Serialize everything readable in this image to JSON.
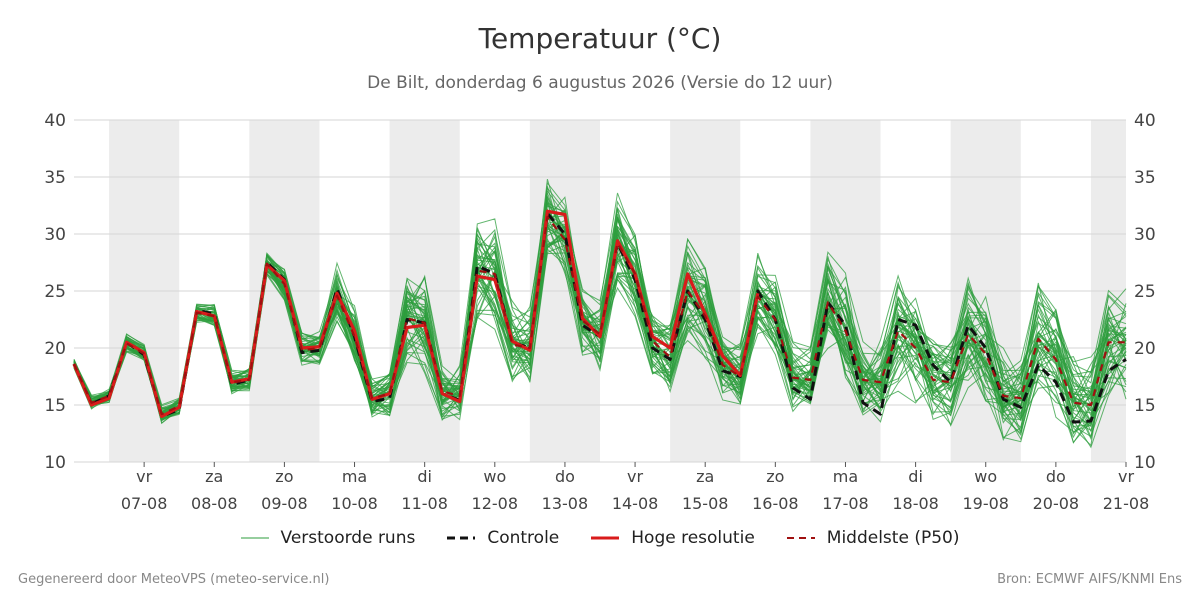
{
  "chart_data": {
    "type": "line",
    "title": "Temperatuur (°C)",
    "subtitle": "De Bilt, donderdag  6 augustus 2026 (Versie do 12 uur)",
    "ylim": [
      10,
      40
    ],
    "y_ticks": [
      "10",
      "15",
      "20",
      "25",
      "30",
      "35",
      "40"
    ],
    "x_range_days": [
      "2026-08-06 12:00",
      "2026-08-21 12:00"
    ],
    "grid": true,
    "weekend_shading": true,
    "legend_placement": "bottom",
    "day_ticks": [
      {
        "dow": "vr",
        "date": "07-08"
      },
      {
        "dow": "za",
        "date": "08-08"
      },
      {
        "dow": "zo",
        "date": "09-08"
      },
      {
        "dow": "ma",
        "date": "10-08"
      },
      {
        "dow": "di",
        "date": "11-08"
      },
      {
        "dow": "wo",
        "date": "12-08"
      },
      {
        "dow": "do",
        "date": "13-08"
      },
      {
        "dow": "vr",
        "date": "14-08"
      },
      {
        "dow": "za",
        "date": "15-08"
      },
      {
        "dow": "zo",
        "date": "16-08"
      },
      {
        "dow": "ma",
        "date": "17-08"
      },
      {
        "dow": "di",
        "date": "18-08"
      },
      {
        "dow": "wo",
        "date": "19-08"
      },
      {
        "dow": "do",
        "date": "20-08"
      },
      {
        "dow": "vr",
        "date": "21-08"
      }
    ],
    "x_hours": [
      0,
      6,
      12,
      18,
      24,
      30,
      36,
      42,
      48,
      54,
      60,
      66,
      72,
      78,
      84,
      90,
      96,
      102,
      108,
      114,
      120,
      126,
      132,
      138,
      144,
      150,
      156,
      162,
      168,
      174,
      180,
      186,
      192,
      198,
      204,
      210,
      216,
      222,
      228,
      234,
      240,
      246,
      252,
      258,
      264,
      270,
      276,
      282,
      288,
      294,
      300,
      306,
      312,
      318,
      324,
      330,
      336,
      342,
      348,
      354,
      360
    ],
    "series": [
      {
        "name": "Controle",
        "color": "#111111",
        "style": "dashed",
        "values": [
          18.6,
          15.1,
          15.8,
          20.5,
          19.4,
          14.0,
          14.6,
          23.3,
          23.0,
          16.8,
          17.2,
          27.5,
          26.0,
          19.6,
          19.8,
          25.2,
          21.0,
          15.3,
          15.6,
          22.5,
          22.2,
          16.0,
          15.4,
          27.2,
          26.5,
          20.5,
          20.0,
          31.8,
          30.0,
          22.0,
          21.0,
          29.2,
          26.0,
          20.0,
          19.0,
          25.0,
          22.5,
          18.0,
          17.5,
          25.0,
          22.5,
          16.5,
          15.5,
          24.0,
          22.0,
          15.2,
          14.2,
          22.5,
          22.0,
          18.5,
          17.0,
          22.0,
          20.0,
          15.5,
          14.8,
          18.5,
          17.0,
          13.5,
          13.6,
          18.0,
          19.0
        ]
      },
      {
        "name": "Hoge resolutie",
        "color": "#d91b1b",
        "style": "solid",
        "values": [
          18.6,
          15.0,
          15.6,
          20.5,
          19.6,
          14.0,
          14.8,
          23.2,
          22.8,
          17.0,
          17.3,
          27.3,
          25.9,
          20.0,
          20.1,
          24.8,
          21.5,
          15.5,
          16.0,
          21.8,
          22.0,
          16.0,
          15.3,
          26.3,
          26.0,
          20.6,
          19.8,
          32.0,
          31.7,
          22.6,
          21.0,
          29.4,
          26.5,
          21.0,
          20.0,
          26.5,
          23.0,
          19.3,
          17.6,
          24.8
        ]
      },
      {
        "name": "Middelste (P50)",
        "color": "#a01010",
        "style": "dashed",
        "values": [
          18.6,
          15.2,
          15.8,
          20.4,
          19.5,
          14.2,
          14.9,
          23.1,
          22.8,
          17.0,
          17.2,
          27.4,
          25.6,
          19.8,
          20.0,
          24.6,
          21.0,
          15.6,
          16.0,
          22.6,
          22.2,
          16.2,
          15.8,
          26.8,
          26.5,
          20.3,
          20.0,
          31.5,
          29.5,
          22.4,
          21.2,
          29.2,
          26.5,
          20.6,
          19.2,
          25.0,
          22.8,
          18.5,
          17.5,
          24.5,
          22.5,
          17.4,
          17.2,
          24.0,
          21.5,
          17.2,
          17.0,
          21.5,
          20.0,
          17.2,
          17.0,
          21.2,
          19.5,
          15.8,
          15.6,
          20.8,
          19.0,
          15.2,
          15.0,
          20.5,
          20.5
        ]
      }
    ],
    "ensemble": {
      "name": "Verstoorde runs",
      "color": "#2e9e3e",
      "members": 50,
      "median": [
        18.6,
        15.2,
        15.8,
        20.4,
        19.5,
        14.2,
        14.9,
        23.1,
        22.8,
        17.0,
        17.2,
        27.4,
        25.6,
        19.8,
        20.0,
        24.6,
        21.0,
        15.6,
        16.0,
        22.6,
        22.2,
        16.2,
        15.8,
        26.8,
        26.5,
        20.3,
        20.0,
        31.5,
        29.5,
        22.4,
        21.2,
        29.2,
        26.5,
        20.6,
        19.2,
        25.0,
        22.8,
        18.5,
        17.5,
        24.5,
        22.5,
        17.4,
        17.2,
        24.0,
        21.5,
        17.2,
        17.0,
        21.5,
        20.0,
        17.2,
        17.0,
        21.2,
        19.5,
        15.8,
        15.6,
        20.8,
        19.0,
        15.2,
        15.0,
        20.5,
        20.5
      ],
      "spread": [
        0.4,
        0.6,
        0.6,
        0.8,
        0.8,
        0.8,
        0.8,
        0.8,
        0.9,
        1.0,
        1.0,
        1.0,
        1.3,
        1.5,
        1.5,
        2.5,
        2.5,
        2.0,
        2.0,
        4.0,
        4.0,
        2.5,
        2.5,
        4.5,
        4.5,
        3.5,
        3.5,
        3.5,
        3.5,
        3.0,
        3.0,
        4.0,
        4.0,
        3.0,
        3.0,
        4.5,
        4.5,
        3.0,
        3.0,
        3.5,
        4.0,
        3.0,
        3.0,
        4.5,
        4.5,
        3.5,
        3.5,
        5.0,
        5.0,
        4.0,
        4.0,
        5.0,
        5.0,
        4.0,
        4.0,
        5.0,
        5.0,
        4.0,
        4.0,
        5.0,
        5.0
      ]
    }
  },
  "legend": {
    "ensemble_label": "Verstoorde runs",
    "control_label": "Controle",
    "hires_label": "Hoge resolutie",
    "median_label": "Middelste (P50)"
  },
  "footer": {
    "left": "Gegenereerd door MeteoVPS (meteo-service.nl)",
    "right": "Bron: ECMWF AIFS/KNMI Ens"
  }
}
